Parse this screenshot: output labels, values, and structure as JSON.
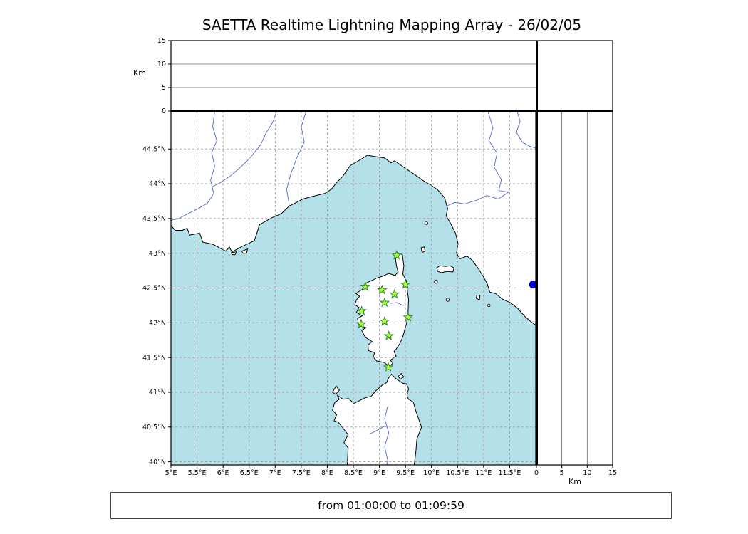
{
  "title": "SAETTA Realtime Lightning Mapping Array - 26/02/05",
  "status_bar": {
    "text": "from 01:00:00 to 01:09:59"
  },
  "axes": {
    "km_label": "Km",
    "altitude_ticks": [
      {
        "label": "0",
        "value": 0
      },
      {
        "label": "5",
        "value": 5
      },
      {
        "label": "10",
        "value": 10
      },
      {
        "label": "15",
        "value": 15
      }
    ],
    "lat_ticks": [
      {
        "label": "44.5°N",
        "value": 44.5
      },
      {
        "label": "44°N",
        "value": 44.0
      },
      {
        "label": "43.5°N",
        "value": 43.5
      },
      {
        "label": "43°N",
        "value": 43.0
      },
      {
        "label": "42.5°N",
        "value": 42.5
      },
      {
        "label": "42°N",
        "value": 42.0
      },
      {
        "label": "41.5°N",
        "value": 41.5
      },
      {
        "label": "41°N",
        "value": 41.0
      },
      {
        "label": "40.5°N",
        "value": 40.5
      },
      {
        "label": "40°N",
        "value": 40.0
      }
    ],
    "lon_ticks": [
      {
        "label": "5°E",
        "value": 5.0
      },
      {
        "label": "5.5°E",
        "value": 5.5
      },
      {
        "label": "6°E",
        "value": 6.0
      },
      {
        "label": "6.5°E",
        "value": 6.5
      },
      {
        "label": "7°E",
        "value": 7.0
      },
      {
        "label": "7.5°E",
        "value": 7.5
      },
      {
        "label": "8°E",
        "value": 8.0
      },
      {
        "label": "8.5°E",
        "value": 8.5
      },
      {
        "label": "9°E",
        "value": 9.0
      },
      {
        "label": "9.5°E",
        "value": 9.5
      },
      {
        "label": "10°E",
        "value": 10.0
      },
      {
        "label": "10.5°E",
        "value": 10.5
      },
      {
        "label": "11°E",
        "value": 11.0
      },
      {
        "label": "11.5°E",
        "value": 11.5
      }
    ]
  },
  "colors": {
    "sea": "#b4e0ea",
    "land": "#ffffff",
    "coast": "#000000",
    "river": "#5566cc",
    "grid": "#9a9a9a",
    "panel_line": "#666666",
    "station_fill": "#adff2f",
    "station_stroke": "#2d8a2d",
    "event": "#0000cc"
  },
  "icons": {
    "station_marker": "green-star-icon",
    "event_marker": "blue-dot-icon"
  },
  "chart_data": {
    "type": "scatter",
    "title": "SAETTA Realtime Lightning Mapping Array - 26/02/05",
    "subtitle": "",
    "time_window": {
      "from": "01:00:00",
      "to": "01:09:59"
    },
    "map_extent": {
      "lon_range": [
        5.0,
        12.0
      ],
      "lat_range": [
        39.955,
        45.045
      ]
    },
    "altitude_range_km": [
      0,
      15
    ],
    "altitude_tick_values": [
      0,
      5,
      10,
      15
    ],
    "grid_interval_deg": 0.5,
    "grid_style": "dashed",
    "legend_position": "none",
    "stations": [
      {
        "lon": 9.33,
        "lat": 42.97
      },
      {
        "lon": 8.73,
        "lat": 42.52
      },
      {
        "lon": 9.05,
        "lat": 42.47
      },
      {
        "lon": 9.5,
        "lat": 42.55
      },
      {
        "lon": 9.29,
        "lat": 42.41
      },
      {
        "lon": 9.1,
        "lat": 42.29
      },
      {
        "lon": 8.66,
        "lat": 42.17
      },
      {
        "lon": 9.55,
        "lat": 42.08
      },
      {
        "lon": 8.65,
        "lat": 41.98
      },
      {
        "lon": 9.1,
        "lat": 42.02
      },
      {
        "lon": 9.18,
        "lat": 41.81
      },
      {
        "lon": 9.17,
        "lat": 41.36
      }
    ],
    "events": [
      {
        "lon": 11.95,
        "lat": 42.55
      }
    ]
  }
}
